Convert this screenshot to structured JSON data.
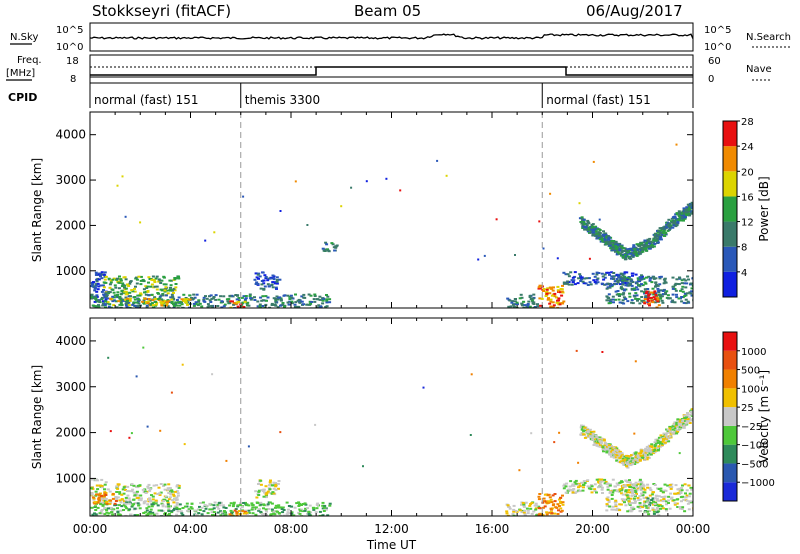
{
  "header": {
    "station": "Stokkseyri (fitACF)",
    "beam": "Beam 05",
    "date": "06/Aug/2017"
  },
  "strip_labels": {
    "nsky": "N.Sky",
    "nsky_ticks": [
      "10^5",
      "10^0"
    ],
    "nsearch": "N.Search",
    "freq": "Freq.",
    "freq_unit": "[MHz]",
    "freq_ticks": [
      "18",
      "8"
    ],
    "nave": "Nave",
    "nave_ticks": [
      "60",
      "0"
    ],
    "cpid": "CPID"
  },
  "cpid_segments": [
    {
      "start": 0,
      "end": 6,
      "label": "normal (fast) 151"
    },
    {
      "start": 6,
      "end": 18,
      "label": "themis 3300"
    },
    {
      "start": 18,
      "end": 24,
      "label": "normal (fast) 151"
    }
  ],
  "chart_data": [
    {
      "type": "heatmap",
      "name": "power-panel",
      "ylabel": "Slant Range [km]",
      "xlabel": "",
      "ylim": [
        180,
        4500
      ],
      "xlim": [
        0,
        24
      ],
      "yticks": [
        "1000",
        "2000",
        "3000",
        "4000"
      ],
      "colorbar": {
        "label": "Power [dB]",
        "ticks": [
          "4",
          "8",
          "12",
          "16",
          "20",
          "24",
          "28"
        ],
        "colors": [
          "#1020e0",
          "#2a58b8",
          "#3a7a6a",
          "#2aa040",
          "#dcd400",
          "#f08a00",
          "#e81010"
        ]
      },
      "regions": [
        {
          "x0": 0,
          "x1": 0.6,
          "y0": 300,
          "y1": 1000,
          "level": 1
        },
        {
          "x0": 0.5,
          "x1": 3.5,
          "y0": 480,
          "y1": 900,
          "level": 3
        },
        {
          "x0": 0,
          "x1": 9.5,
          "y0": 180,
          "y1": 500,
          "level": 2
        },
        {
          "x0": 0.5,
          "x1": 4,
          "y0": 250,
          "y1": 420,
          "level": 4
        },
        {
          "x0": 5.5,
          "x1": 6.2,
          "y0": 200,
          "y1": 350,
          "level": 5
        },
        {
          "x0": 6.5,
          "x1": 7.5,
          "y0": 600,
          "y1": 1000,
          "level": 1
        },
        {
          "x0": 9.2,
          "x1": 9.8,
          "y0": 1400,
          "y1": 1650,
          "level": 2
        },
        {
          "x0": 16.5,
          "x1": 17.8,
          "y0": 200,
          "y1": 500,
          "level": 2
        },
        {
          "x0": 17.8,
          "x1": 18.8,
          "y0": 200,
          "y1": 700,
          "level": 5
        },
        {
          "x0": 18.8,
          "x1": 22,
          "y0": 700,
          "y1": 1000,
          "level": 1
        },
        {
          "x0": 20.5,
          "x1": 24,
          "y0": 300,
          "y1": 900,
          "level": 2
        },
        {
          "x0": 22,
          "x1": 22.6,
          "y0": 200,
          "y1": 600,
          "level": 6
        }
      ],
      "arc": {
        "x": [
          19.5,
          20.5,
          21.3,
          22.2,
          23.2,
          24
        ],
        "y": [
          2100,
          1700,
          1380,
          1600,
          2100,
          2450
        ],
        "level": 2
      }
    },
    {
      "type": "heatmap",
      "name": "velocity-panel",
      "ylabel": "Slant Range [km]",
      "xlabel": "Time UT",
      "ylim": [
        180,
        4500
      ],
      "xlim": [
        0,
        24
      ],
      "yticks": [
        "1000",
        "2000",
        "3000",
        "4000"
      ],
      "xticks": [
        "00:00",
        "04:00",
        "08:00",
        "12:00",
        "16:00",
        "20:00",
        "00:00"
      ],
      "colorbar": {
        "label": "Velocity [m s⁻¹]",
        "ticks": [
          "1000",
          "500",
          "100",
          "25",
          "−25",
          "−100",
          "−500",
          "−1000"
        ],
        "colors": [
          "#1a2ad8",
          "#2a58b0",
          "#2e8a5a",
          "#4ec83a",
          "#c8c8c8",
          "#f0c000",
          "#f08000",
          "#e85010",
          "#e81010"
        ]
      },
      "regions": [
        {
          "x0": 0,
          "x1": 0.6,
          "y0": 300,
          "y1": 1000,
          "level": 4
        },
        {
          "x0": 0.5,
          "x1": 3.5,
          "y0": 480,
          "y1": 900,
          "level": 4
        },
        {
          "x0": 0,
          "x1": 9.5,
          "y0": 180,
          "y1": 500,
          "level": 3
        },
        {
          "x0": 0,
          "x1": 1,
          "y0": 450,
          "y1": 700,
          "level": 6
        },
        {
          "x0": 5.5,
          "x1": 6.2,
          "y0": 200,
          "y1": 350,
          "level": 6
        },
        {
          "x0": 6.5,
          "x1": 7.5,
          "y0": 600,
          "y1": 1000,
          "level": 4
        },
        {
          "x0": 16.5,
          "x1": 17.8,
          "y0": 200,
          "y1": 500,
          "level": 4
        },
        {
          "x0": 17.8,
          "x1": 18.8,
          "y0": 200,
          "y1": 700,
          "level": 6
        },
        {
          "x0": 18.8,
          "x1": 22,
          "y0": 700,
          "y1": 1000,
          "level": 4
        },
        {
          "x0": 20.5,
          "x1": 24,
          "y0": 300,
          "y1": 900,
          "level": 4
        },
        {
          "x0": 22,
          "x1": 22.6,
          "y0": 200,
          "y1": 600,
          "level": 3
        }
      ],
      "arc": {
        "x": [
          19.5,
          20.5,
          21.3,
          22.2,
          23.2,
          24
        ],
        "y": [
          2100,
          1700,
          1380,
          1600,
          2100,
          2450
        ],
        "level": 4
      }
    }
  ]
}
